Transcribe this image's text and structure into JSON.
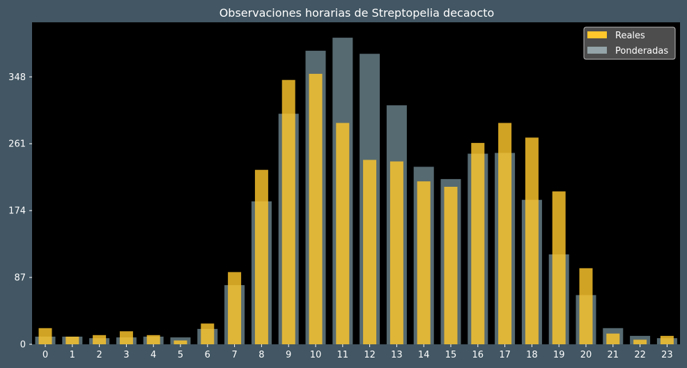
{
  "chart_data": {
    "type": "bar",
    "title": "Observaciones horarias de Streptopelia decaocto",
    "xlabel": "",
    "ylabel": "",
    "categories": [
      "0",
      "1",
      "2",
      "3",
      "4",
      "5",
      "6",
      "7",
      "8",
      "9",
      "10",
      "11",
      "12",
      "13",
      "14",
      "15",
      "16",
      "17",
      "18",
      "19",
      "20",
      "21",
      "22",
      "23"
    ],
    "series": [
      {
        "name": "Reales",
        "color": "#ffc72c",
        "values": [
          21,
          10,
          12,
          17,
          12,
          5,
          27,
          94,
          227,
          344,
          352,
          288,
          240,
          238,
          212,
          205,
          262,
          288,
          269,
          199,
          99,
          14,
          6,
          11
        ]
      },
      {
        "name": "Ponderadas",
        "color": "#94a4a8",
        "values": [
          10,
          10,
          8,
          9,
          10,
          9,
          20,
          77,
          186,
          300,
          382,
          399,
          378,
          311,
          231,
          215,
          248,
          249,
          188,
          117,
          64,
          21,
          11,
          8
        ]
      }
    ],
    "yticks": [
      0,
      87,
      174,
      261,
      348
    ],
    "ylim": [
      0,
      419
    ],
    "grid": false,
    "legend_position": "top-right"
  }
}
